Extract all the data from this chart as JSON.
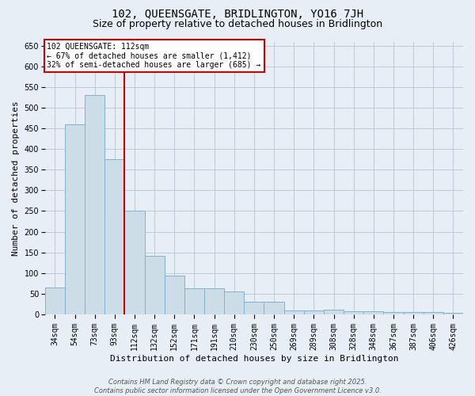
{
  "title": "102, QUEENSGATE, BRIDLINGTON, YO16 7JH",
  "subtitle": "Size of property relative to detached houses in Bridlington",
  "xlabel": "Distribution of detached houses by size in Bridlington",
  "ylabel": "Number of detached properties",
  "categories": [
    "34sqm",
    "54sqm",
    "73sqm",
    "93sqm",
    "112sqm",
    "132sqm",
    "152sqm",
    "171sqm",
    "191sqm",
    "210sqm",
    "230sqm",
    "250sqm",
    "269sqm",
    "289sqm",
    "308sqm",
    "328sqm",
    "348sqm",
    "367sqm",
    "387sqm",
    "406sqm",
    "426sqm"
  ],
  "values": [
    65,
    460,
    530,
    375,
    250,
    142,
    93,
    63,
    63,
    55,
    30,
    30,
    10,
    10,
    12,
    7,
    8,
    5,
    5,
    5,
    4
  ],
  "bar_color": "#ccdde8",
  "bar_edge_color": "#7fb3d3",
  "marker_index": 4,
  "marker_line_color": "#cc0000",
  "annotation_text": "102 QUEENSGATE: 112sqm\n← 67% of detached houses are smaller (1,412)\n32% of semi-detached houses are larger (685) →",
  "annotation_box_facecolor": "#ffffff",
  "annotation_box_edgecolor": "#cc0000",
  "ylim_max": 660,
  "ytick_step": 50,
  "background_color": "#e8eef5",
  "title_fontsize": 10,
  "subtitle_fontsize": 9,
  "axis_label_fontsize": 8,
  "tick_fontsize": 7,
  "annot_fontsize": 7,
  "footer_text": "Contains HM Land Registry data © Crown copyright and database right 2025.\nContains public sector information licensed under the Open Government Licence v3.0.",
  "footer_fontsize": 6
}
